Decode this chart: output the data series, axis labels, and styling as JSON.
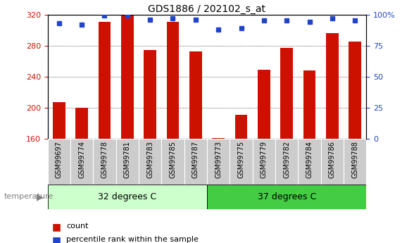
{
  "title": "GDS1886 / 202102_s_at",
  "samples": [
    "GSM99697",
    "GSM99774",
    "GSM99778",
    "GSM99781",
    "GSM99783",
    "GSM99785",
    "GSM99787",
    "GSM99773",
    "GSM99775",
    "GSM99779",
    "GSM99782",
    "GSM99784",
    "GSM99786",
    "GSM99788"
  ],
  "bar_values": [
    207,
    200,
    311,
    320,
    274,
    311,
    272,
    161,
    191,
    249,
    277,
    248,
    296,
    285
  ],
  "percentile_values": [
    93,
    92,
    99,
    99,
    96,
    97,
    96,
    88,
    89,
    95,
    95,
    94,
    97,
    95
  ],
  "ylim_left": [
    160,
    320
  ],
  "ylim_right": [
    0,
    100
  ],
  "yticks_left": [
    160,
    200,
    240,
    280,
    320
  ],
  "yticks_right": [
    0,
    25,
    50,
    75,
    100
  ],
  "bar_color": "#CC1100",
  "dot_color": "#2244CC",
  "group1_label": "32 degrees C",
  "group2_label": "37 degrees C",
  "group1_count": 7,
  "group2_count": 7,
  "group1_color": "#CCFFCC",
  "group2_color": "#44CC44",
  "temp_label": "temperature",
  "legend_count": "count",
  "legend_pct": "percentile rank within the sample",
  "tick_label_bg": "#CCCCCC",
  "title_fontsize": 10,
  "tick_fontsize": 8,
  "label_fontsize": 7,
  "group_fontsize": 9
}
